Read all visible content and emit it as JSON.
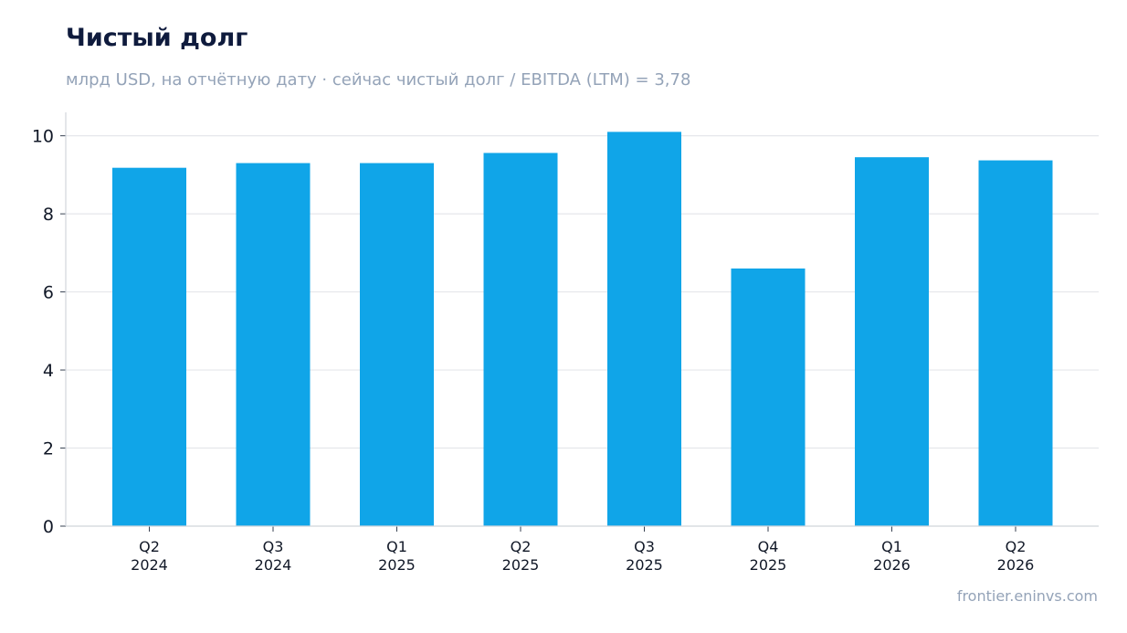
{
  "title": "Чистый долг",
  "subtitle": "млрд USD, на отчётную дату · сейчас чистый долг / EBITDA (LTM) = 3,78",
  "source": "frontier.eninvs.com",
  "colors": {
    "bar": "#10a5e8",
    "grid": "#e5e7eb",
    "axis": "#d1d5db"
  },
  "chart_data": {
    "type": "bar",
    "categories": [
      [
        "Q2",
        "2024"
      ],
      [
        "Q3",
        "2024"
      ],
      [
        "Q1",
        "2025"
      ],
      [
        "Q2",
        "2025"
      ],
      [
        "Q3",
        "2025"
      ],
      [
        "Q4",
        "2025"
      ],
      [
        "Q1",
        "2026"
      ],
      [
        "Q2",
        "2026"
      ]
    ],
    "values": [
      9.18,
      9.3,
      9.3,
      9.56,
      10.1,
      6.6,
      9.45,
      9.37
    ],
    "ylim": [
      0,
      10.6
    ],
    "yticks": [
      0,
      2,
      4,
      6,
      8,
      10
    ],
    "grid": true
  }
}
